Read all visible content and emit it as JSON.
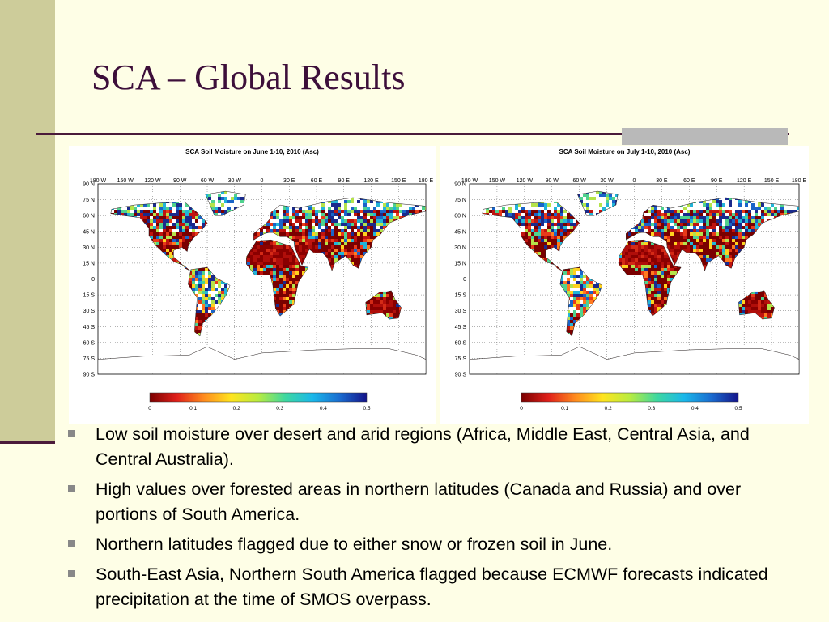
{
  "slide": {
    "title": "SCA – Global Results",
    "colors": {
      "background": "#fefee6",
      "side_band": "#cdcc9a",
      "rule": "#4a1a3a",
      "title": "#3d0f3a"
    }
  },
  "maps": [
    {
      "title": "SCA Soil Moisture on June 1-10, 2010 (Asc)",
      "lon_labels": [
        "180 W",
        "150 W",
        "120 W",
        "90 W",
        "60 W",
        "30 W",
        "0",
        "30 E",
        "60 E",
        "90 E",
        "120 E",
        "150 E",
        "180 E"
      ],
      "lat_labels": [
        "90 N",
        "75 N",
        "60 N",
        "45 N",
        "30 N",
        "15 N",
        "0",
        "15 S",
        "30 S",
        "45 S",
        "60 S",
        "75 S",
        "90 S"
      ],
      "colorbar": {
        "ticks": [
          "0",
          "0.1",
          "0.2",
          "0.3",
          "0.4",
          "0.5"
        ]
      }
    },
    {
      "title": "SCA Soil Moisture on July 1-10, 2010 (Asc)",
      "lon_labels": [
        "180 W",
        "150 W",
        "120 W",
        "90 W",
        "60 W",
        "30 W",
        "0",
        "30 E",
        "60 E",
        "90 E",
        "120 E",
        "150 E",
        "180 E"
      ],
      "lat_labels": [
        "90 N",
        "75 N",
        "60 N",
        "45 N",
        "30 N",
        "15 N",
        "0",
        "15 S",
        "30 S",
        "45 S",
        "60 S",
        "75 S",
        "90 S"
      ],
      "colorbar": {
        "ticks": [
          "0",
          "0.1",
          "0.2",
          "0.3",
          "0.4",
          "0.5"
        ]
      }
    }
  ],
  "bullets": [
    "Low soil moisture over desert and arid regions (Africa, Middle East, Central Asia, and Central Australia).",
    "High values over forested areas in northern latitudes (Canada and Russia) and over portions of South America.",
    "Northern latitudes flagged due to either snow or frozen soil in June.",
    "South-East Asia, Northern South America flagged because ECMWF forecasts indicated precipitation at the time of SMOS overpass."
  ]
}
